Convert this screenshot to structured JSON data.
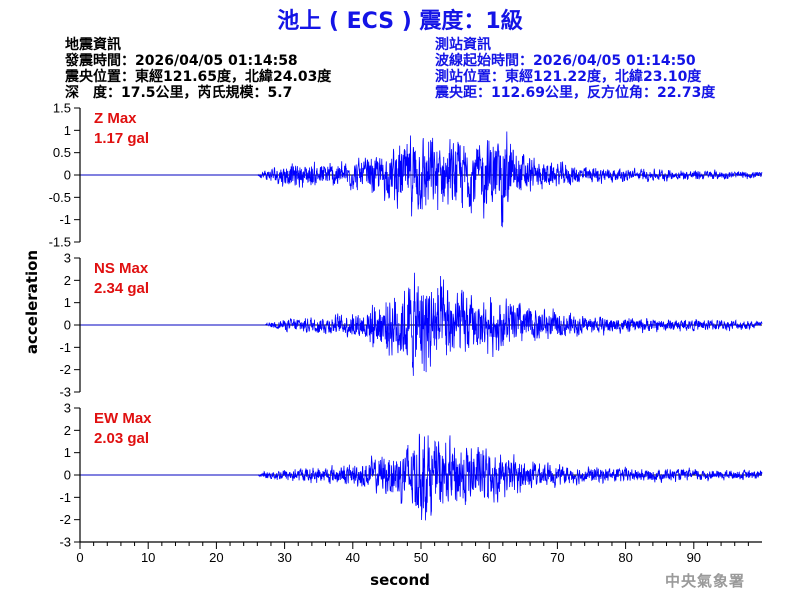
{
  "title": "池上 ( ECS ) 震度：1級",
  "info_left": [
    "地震資訊",
    "發震時間：2026/04/05 01:14:58",
    "震央位置：東經121.65度，北緯24.03度",
    "深　度：17.5公里，芮氏規模：5.7"
  ],
  "info_right": [
    "測站資訊",
    "波線起始時間：2026/04/05 01:14:50",
    "測站位置：東經121.22度，北緯23.10度",
    "震央距：112.69公里，反方位角：22.73度"
  ],
  "credit": "中央氣象署",
  "colors": {
    "trace": "#0000ff",
    "max_label": "#e01010",
    "title": "#1414e6"
  },
  "chart_data": {
    "type": "line",
    "xlabel": "second",
    "ylabel": "acceleration",
    "xlim": [
      0,
      100
    ],
    "x_ticks": [
      0,
      10,
      20,
      30,
      40,
      50,
      60,
      70,
      80,
      90
    ],
    "grid": false,
    "panels": [
      {
        "name": "Z",
        "max_label": "Z Max",
        "max_value": "1.17 gal",
        "peak": 1.17,
        "ylim": [
          -1.5,
          1.5
        ],
        "y_ticks": [
          -1.5,
          -1,
          -0.5,
          0,
          0.5,
          1,
          1.5
        ],
        "y_tick_labels": [
          "-1.5",
          "-1",
          "-0.5",
          "0",
          "0.5",
          "1",
          "1.5"
        ],
        "envelope": [
          [
            0,
            0
          ],
          [
            26,
            0
          ],
          [
            27,
            0.12
          ],
          [
            30,
            0.28
          ],
          [
            35,
            0.3
          ],
          [
            40,
            0.35
          ],
          [
            45,
            0.55
          ],
          [
            48,
            0.85
          ],
          [
            50,
            0.95
          ],
          [
            53,
            0.8
          ],
          [
            57,
            0.85
          ],
          [
            60,
            0.9
          ],
          [
            62,
            1.17
          ],
          [
            64,
            0.6
          ],
          [
            67,
            0.35
          ],
          [
            72,
            0.25
          ],
          [
            80,
            0.15
          ],
          [
            90,
            0.12
          ],
          [
            100,
            0.08
          ]
        ]
      },
      {
        "name": "NS",
        "max_label": "NS Max",
        "max_value": "2.34 gal",
        "peak": 2.34,
        "ylim": [
          -3,
          3
        ],
        "y_ticks": [
          -3,
          -2,
          -1,
          0,
          1,
          2,
          3
        ],
        "y_tick_labels": [
          "-3",
          "-2",
          "-1",
          "0",
          "1",
          "2",
          "3"
        ],
        "envelope": [
          [
            0,
            0
          ],
          [
            27,
            0
          ],
          [
            28,
            0.15
          ],
          [
            32,
            0.35
          ],
          [
            38,
            0.45
          ],
          [
            42,
            0.8
          ],
          [
            46,
            1.5
          ],
          [
            49,
            2.2
          ],
          [
            51,
            2.34
          ],
          [
            53,
            1.9
          ],
          [
            55,
            1.7
          ],
          [
            58,
            1.1
          ],
          [
            62,
            1.2
          ],
          [
            66,
            0.9
          ],
          [
            70,
            0.6
          ],
          [
            75,
            0.4
          ],
          [
            85,
            0.3
          ],
          [
            100,
            0.2
          ]
        ]
      },
      {
        "name": "EW",
        "max_label": "EW Max",
        "max_value": "2.03 gal",
        "peak": 2.03,
        "ylim": [
          -3,
          3
        ],
        "y_ticks": [
          -3,
          -2,
          -1,
          0,
          1,
          2,
          3
        ],
        "y_tick_labels": [
          "-3",
          "-2",
          "-1",
          "0",
          "1",
          "2",
          "3"
        ],
        "envelope": [
          [
            0,
            0
          ],
          [
            26,
            0
          ],
          [
            27,
            0.15
          ],
          [
            31,
            0.3
          ],
          [
            36,
            0.35
          ],
          [
            40,
            0.45
          ],
          [
            45,
            0.9
          ],
          [
            48,
            1.5
          ],
          [
            50,
            2.03
          ],
          [
            52,
            1.7
          ],
          [
            55,
            1.5
          ],
          [
            58,
            1.3
          ],
          [
            62,
            0.9
          ],
          [
            66,
            0.6
          ],
          [
            70,
            0.4
          ],
          [
            80,
            0.3
          ],
          [
            100,
            0.2
          ]
        ]
      }
    ]
  }
}
